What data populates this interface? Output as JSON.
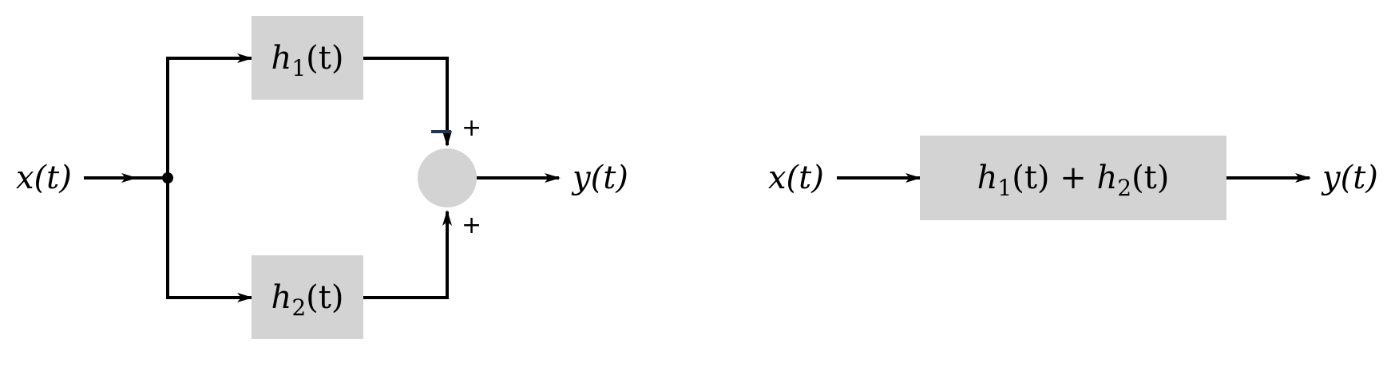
{
  "colors": {
    "block_fill": "#d3d3d3",
    "line": "#000000",
    "marker_accent": "#1f3552"
  },
  "parallel": {
    "input": "x(t)",
    "output": "y(t)",
    "block_top": {
      "name": "h",
      "sub": "1",
      "arg": "(t)"
    },
    "block_bottom": {
      "name": "h",
      "sub": "2",
      "arg": "(t)"
    },
    "sign_top": "+",
    "sign_bottom": "+"
  },
  "equivalent": {
    "input": "x(t)",
    "output": "y(t)",
    "block": {
      "h1_name": "h",
      "h1_sub": "1",
      "h1_arg": "(t)",
      "op": " + ",
      "h2_name": "h",
      "h2_sub": "2",
      "h2_arg": "(t)"
    }
  }
}
